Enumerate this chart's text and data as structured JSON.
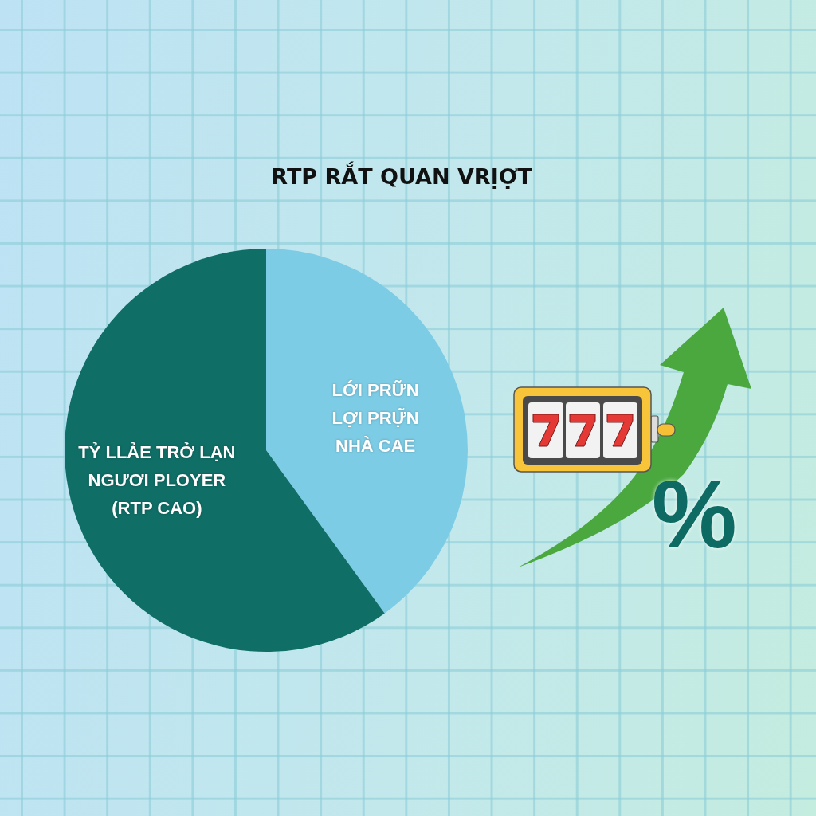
{
  "chart_data": {
    "type": "pie",
    "title": "RTP RẮT QUAN VRỊỢT",
    "categories": [
      "LỚI PRỮN\nLỢI PRỰ̃N\nNHÀ CAE",
      "TỶ LLẢE TRỞ LẠN\nNGƯƠI PLOYER\n(RTP CAO)"
    ],
    "values": [
      40,
      60
    ],
    "colors": [
      "#7dcce6",
      "#0f6e66"
    ],
    "annotations": [
      "%"
    ],
    "legend": false
  }
}
